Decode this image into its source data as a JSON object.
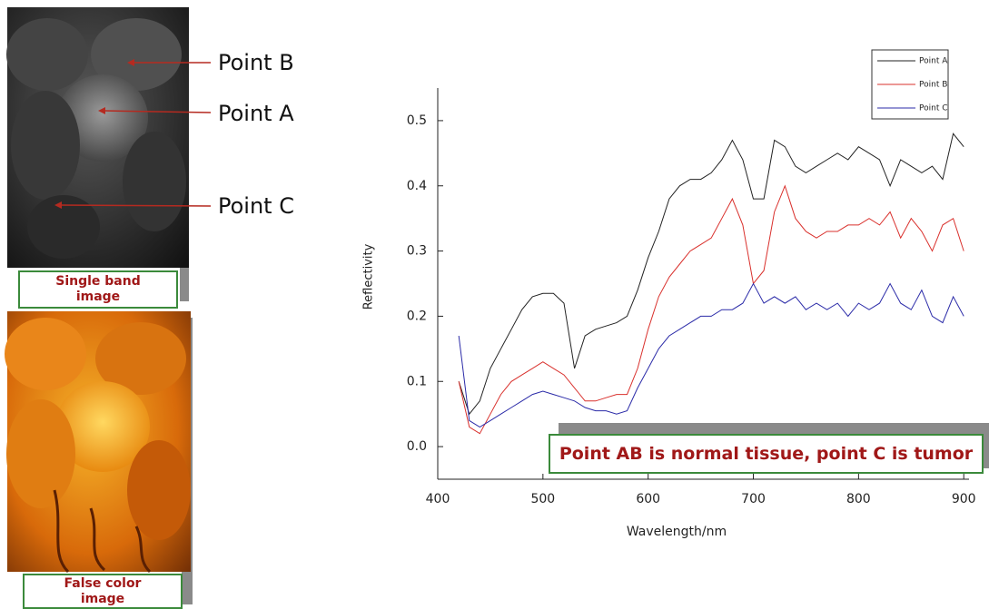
{
  "figure": {
    "panels": [
      {
        "caption": "Single band image"
      },
      {
        "caption": "False color image"
      }
    ],
    "point_labels": [
      "Point B",
      "Point A",
      "Point C"
    ]
  },
  "chart_data": {
    "type": "line",
    "x_label": "Wavelength/nm",
    "y_label": "Reflectivity",
    "annotation": "Point AB is normal tissue, point C is tumor",
    "xlim": [
      400,
      905
    ],
    "ylim": [
      -0.05,
      0.55
    ],
    "xticks": [
      400,
      500,
      600,
      700,
      800,
      900
    ],
    "yticks": [
      {
        "value": 0,
        "label": "0.0"
      },
      0.1,
      0.2,
      0.3,
      0.4,
      0.5
    ],
    "legend": "upper right",
    "x": [
      420,
      430,
      440,
      450,
      460,
      470,
      480,
      490,
      500,
      510,
      520,
      530,
      540,
      550,
      560,
      570,
      580,
      590,
      600,
      610,
      620,
      630,
      640,
      650,
      660,
      670,
      680,
      690,
      700,
      710,
      720,
      730,
      740,
      750,
      760,
      770,
      780,
      790,
      800,
      810,
      820,
      830,
      840,
      850,
      860,
      870,
      880,
      890,
      900
    ],
    "series": [
      {
        "name": "Point A",
        "color": "#222222",
        "values": [
          0.1,
          0.05,
          0.07,
          0.12,
          0.15,
          0.18,
          0.21,
          0.23,
          0.235,
          0.235,
          0.22,
          0.12,
          0.17,
          0.18,
          0.185,
          0.19,
          0.2,
          0.24,
          0.29,
          0.33,
          0.38,
          0.4,
          0.41,
          0.41,
          0.42,
          0.44,
          0.47,
          0.44,
          0.38,
          0.38,
          0.47,
          0.46,
          0.43,
          0.42,
          0.43,
          0.44,
          0.45,
          0.44,
          0.46,
          0.45,
          0.44,
          0.4,
          0.44,
          0.43,
          0.42,
          0.43,
          0.41,
          0.48,
          0.46
        ]
      },
      {
        "name": "Point B",
        "color": "#d9302c",
        "values": [
          0.1,
          0.03,
          0.02,
          0.05,
          0.08,
          0.1,
          0.11,
          0.12,
          0.13,
          0.12,
          0.11,
          0.09,
          0.07,
          0.07,
          0.075,
          0.08,
          0.08,
          0.12,
          0.18,
          0.23,
          0.26,
          0.28,
          0.3,
          0.31,
          0.32,
          0.35,
          0.38,
          0.34,
          0.25,
          0.27,
          0.36,
          0.4,
          0.35,
          0.33,
          0.32,
          0.33,
          0.33,
          0.34,
          0.34,
          0.35,
          0.34,
          0.36,
          0.32,
          0.35,
          0.33,
          0.3,
          0.34,
          0.35,
          0.3
        ]
      },
      {
        "name": "Point C",
        "color": "#2b2ba8",
        "values": [
          0.17,
          0.04,
          0.03,
          0.04,
          0.05,
          0.06,
          0.07,
          0.08,
          0.085,
          0.08,
          0.075,
          0.07,
          0.06,
          0.055,
          0.055,
          0.05,
          0.055,
          0.09,
          0.12,
          0.15,
          0.17,
          0.18,
          0.19,
          0.2,
          0.2,
          0.21,
          0.21,
          0.22,
          0.25,
          0.22,
          0.23,
          0.22,
          0.23,
          0.21,
          0.22,
          0.21,
          0.22,
          0.2,
          0.22,
          0.21,
          0.22,
          0.25,
          0.22,
          0.21,
          0.24,
          0.2,
          0.19,
          0.23,
          0.2
        ]
      }
    ]
  }
}
